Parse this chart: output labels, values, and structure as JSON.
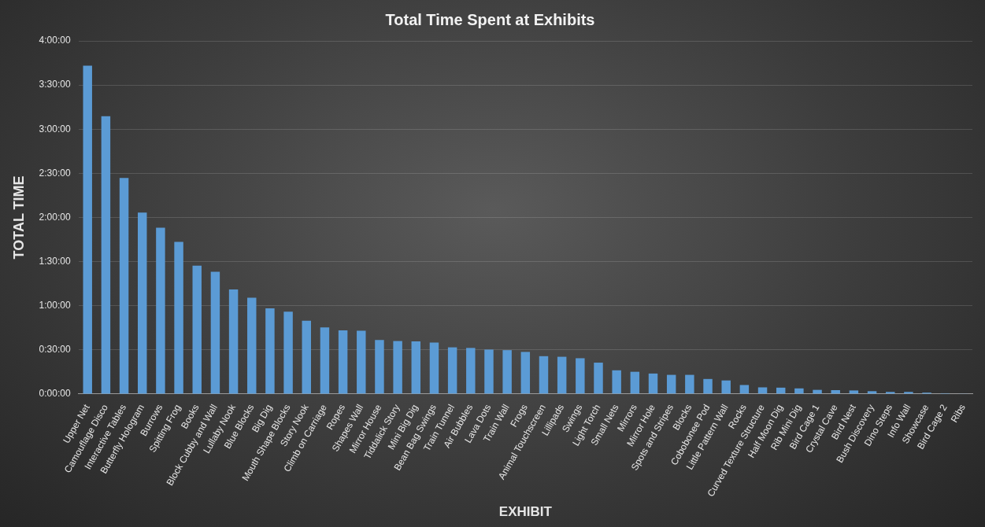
{
  "chart_data": {
    "type": "bar",
    "title": "Total Time Spent at Exhibits",
    "xlabel": "EXHIBIT",
    "ylabel": "TOTAL TIME",
    "categories": [
      "Upper Net",
      "Camouflage Disco",
      "Interactive Tables",
      "Butterfly Hologram",
      "Burrows",
      "Spitting Frog",
      "Books",
      "Block Cubby and Wall",
      "Lullaby Nook",
      "Blue Blocks",
      "Big Dig",
      "Mouth Shape Blocks",
      "Story Nook",
      "Climb on Carriage",
      "Ropes",
      "Shapes Wall",
      "Mirror House",
      "Tiddalick Story",
      "Mini Big Dig",
      "Bean Bag Swings",
      "Train Tunnel",
      "Air Bubbles",
      "Lava Dots",
      "Train Wall",
      "Frogs",
      "Animal Touchscreen",
      "Lillipads",
      "Swings",
      "Light Torch",
      "Small Nets",
      "Mirrors",
      "Mirror Hole",
      "Spots and Stripes",
      "Blocks",
      "Cobobonee Pod",
      "Little Pattern Wall",
      "Rocks",
      "Curved Texture Structure",
      "Half Moon Dig",
      "Rib Mini Dig",
      "Bird Cage 1",
      "Crystal Cave",
      "Bird Nest",
      "Bush Discovery",
      "Dino Steps",
      "Info Wall",
      "Showcase",
      "Bird Cage 2",
      "Ribs"
    ],
    "values": [
      223.2,
      188.8,
      146.8,
      123.3,
      113,
      103.4,
      87.2,
      83.1,
      71.1,
      65.5,
      58.2,
      55.9,
      49.8,
      45.3,
      43.2,
      43,
      36.7,
      36,
      35.8,
      35,
      31.7,
      31.3,
      30.2,
      29.8,
      28.6,
      25.7,
      25.3,
      24.3,
      21.3,
      16.1,
      15.1,
      13.9,
      13,
      13,
      10.2,
      9.2,
      6.1,
      4.5,
      4.3,
      3.8,
      2.8,
      2.6,
      2.4,
      1.9,
      1.4,
      1.4,
      0.9,
      0.5,
      0.2
    ],
    "color": "#5b9bd5",
    "ylim": [
      0,
      240
    ],
    "yticks": [
      {
        "value": 0,
        "label": "0:00:00"
      },
      {
        "value": 30,
        "label": "0:30:00"
      },
      {
        "value": 60,
        "label": "1:00:00"
      },
      {
        "value": 90,
        "label": "1:30:00"
      },
      {
        "value": 120,
        "label": "2:00:00"
      },
      {
        "value": 150,
        "label": "2:30:00"
      },
      {
        "value": 180,
        "label": "3:00:00"
      },
      {
        "value": 210,
        "label": "3:30:00"
      },
      {
        "value": 240,
        "label": "4:00:00"
      }
    ],
    "grid": "y",
    "legend": false
  }
}
